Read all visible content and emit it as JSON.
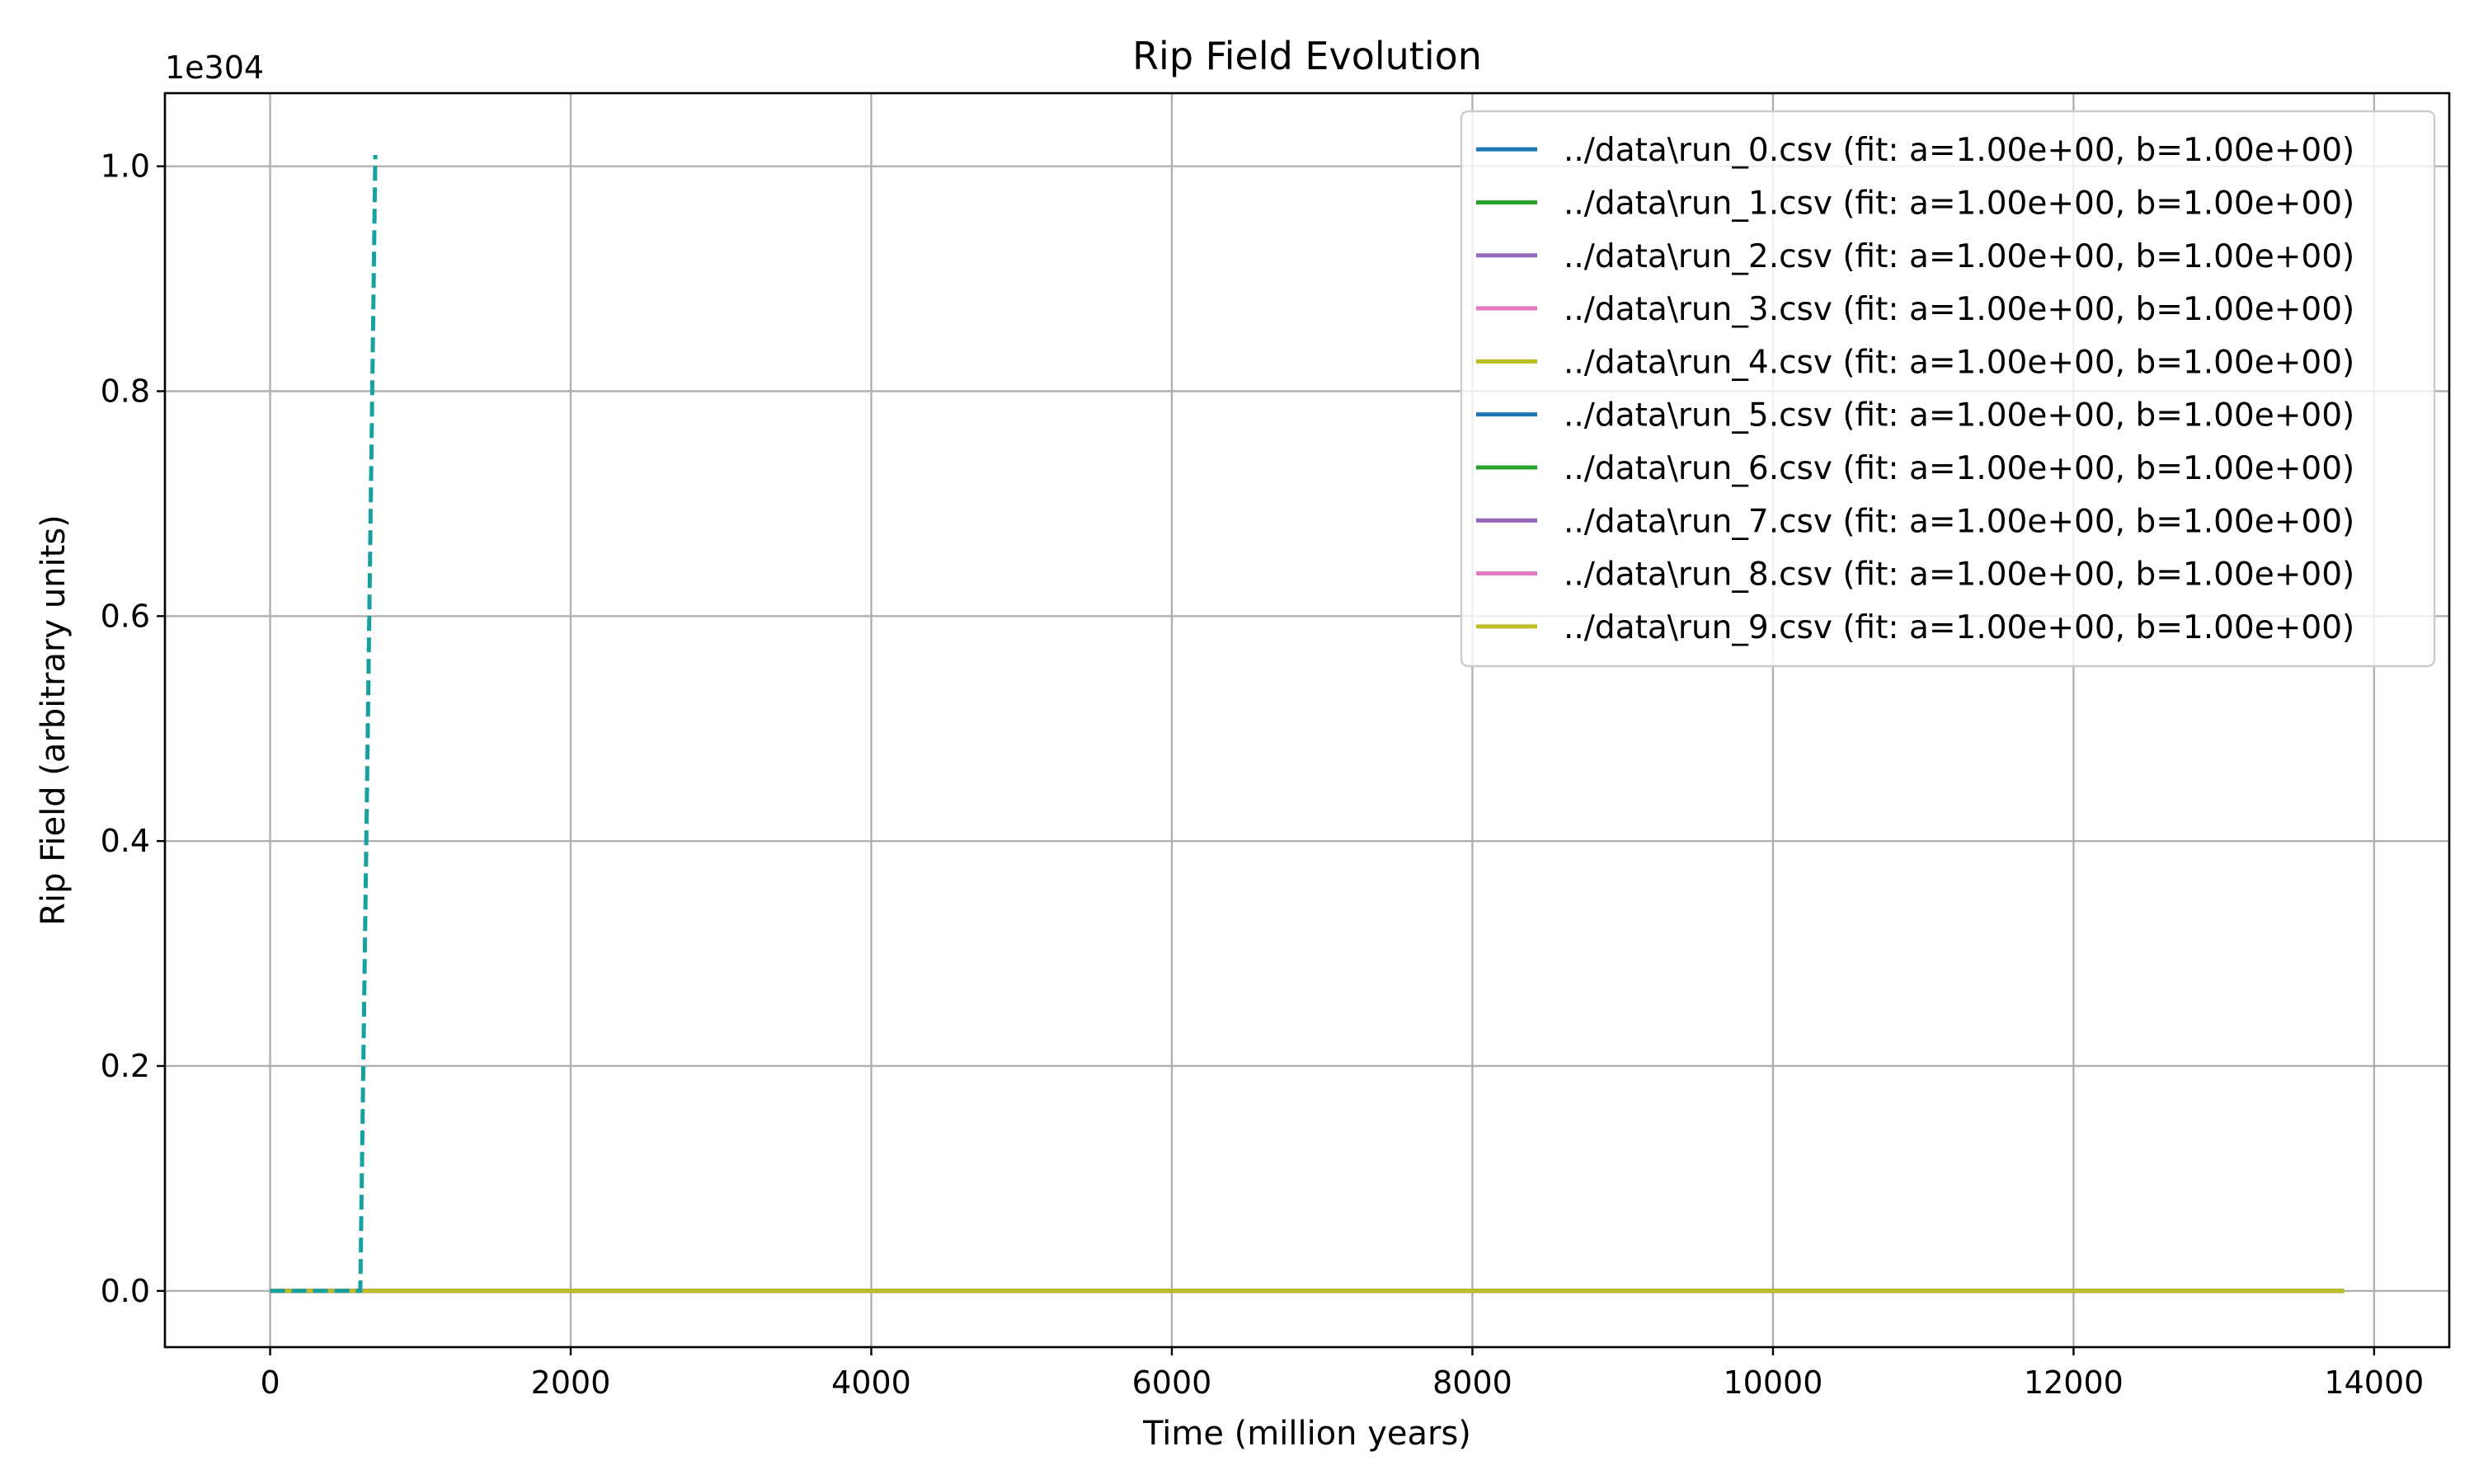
{
  "chart_data": {
    "type": "line",
    "title": "Rip Field Evolution",
    "xlabel": "Time (million years)",
    "ylabel": "Rip Field (arbitrary units)",
    "y_offset_label": "1e304",
    "xlim": [
      -700,
      14500
    ],
    "ylim": [
      -0.05,
      1.065
    ],
    "xticks": [
      0,
      2000,
      4000,
      6000,
      8000,
      10000,
      12000,
      14000
    ],
    "xtick_labels": [
      "0",
      "2000",
      "4000",
      "6000",
      "8000",
      "10000",
      "12000",
      "14000"
    ],
    "yticks": [
      0.0,
      0.2,
      0.4,
      0.6,
      0.8,
      1.0
    ],
    "ytick_labels": [
      "0.0",
      "0.2",
      "0.4",
      "0.6",
      "0.8",
      "1.0"
    ],
    "grid": true,
    "legend_position": "top-right",
    "series": [
      {
        "name": "../data\\run_0.csv (fit: a=1.00e+00, b=1.00e+00)",
        "color": "#1f77b4",
        "x": [
          0,
          13800
        ],
        "y": [
          0,
          0
        ]
      },
      {
        "name": "../data\\run_1.csv (fit: a=1.00e+00, b=1.00e+00)",
        "color": "#2ca02c",
        "x": [
          0,
          13800
        ],
        "y": [
          0,
          0
        ]
      },
      {
        "name": "../data\\run_2.csv (fit: a=1.00e+00, b=1.00e+00)",
        "color": "#9467bd",
        "x": [
          0,
          13800
        ],
        "y": [
          0,
          0
        ]
      },
      {
        "name": "../data\\run_3.csv (fit: a=1.00e+00, b=1.00e+00)",
        "color": "#e377c2",
        "x": [
          0,
          13800
        ],
        "y": [
          0,
          0
        ]
      },
      {
        "name": "../data\\run_4.csv (fit: a=1.00e+00, b=1.00e+00)",
        "color": "#bcbd22",
        "x": [
          0,
          13800
        ],
        "y": [
          0,
          0
        ]
      },
      {
        "name": "../data\\run_5.csv (fit: a=1.00e+00, b=1.00e+00)",
        "color": "#1f77b4",
        "x": [
          0,
          13800
        ],
        "y": [
          0,
          0
        ]
      },
      {
        "name": "../data\\run_6.csv (fit: a=1.00e+00, b=1.00e+00)",
        "color": "#2ca02c",
        "x": [
          0,
          13800
        ],
        "y": [
          0,
          0
        ]
      },
      {
        "name": "../data\\run_7.csv (fit: a=1.00e+00, b=1.00e+00)",
        "color": "#9467bd",
        "x": [
          0,
          13800
        ],
        "y": [
          0,
          0
        ]
      },
      {
        "name": "../data\\run_8.csv (fit: a=1.00e+00, b=1.00e+00)",
        "color": "#e377c2",
        "x": [
          0,
          13800
        ],
        "y": [
          0,
          0
        ]
      },
      {
        "name": "../data\\run_9.csv (fit: a=1.00e+00, b=1.00e+00)",
        "color": "#bcbd22",
        "x": [
          0,
          13800
        ],
        "y": [
          0,
          0
        ]
      }
    ],
    "fit_curves": [
      {
        "color": "#17a0a0",
        "style": "dashed",
        "x": [
          0,
          600,
          650,
          700
        ],
        "y": [
          0,
          0,
          0.5,
          1.01
        ]
      }
    ]
  }
}
